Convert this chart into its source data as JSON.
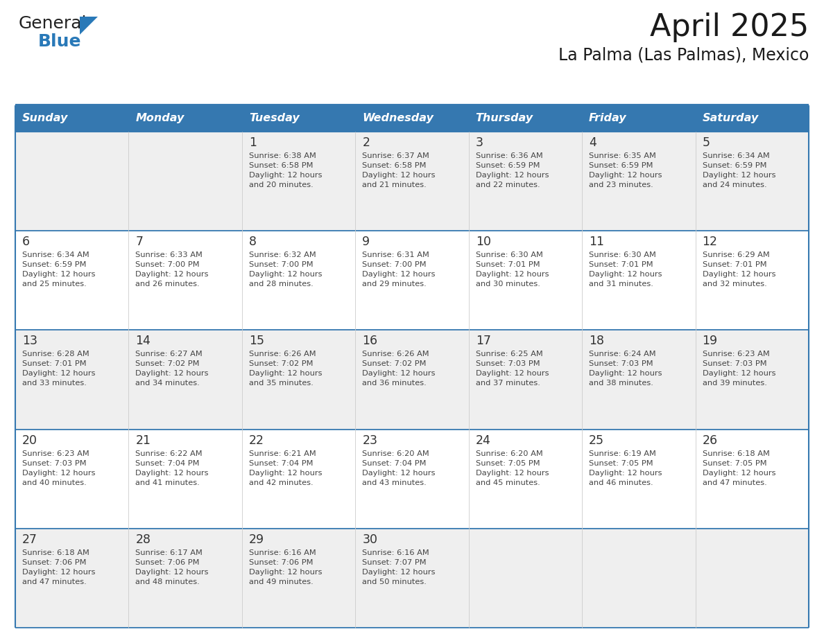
{
  "title": "April 2025",
  "subtitle": "La Palma (Las Palmas), Mexico",
  "header_bg_color": "#3578B0",
  "header_text_color": "#FFFFFF",
  "bg_color": "#FFFFFF",
  "row1_bg": "#EFEFEF",
  "separator_color": "#3578B0",
  "cell_text_color": "#444444",
  "day_num_color": "#333333",
  "day_names": [
    "Sunday",
    "Monday",
    "Tuesday",
    "Wednesday",
    "Thursday",
    "Friday",
    "Saturday"
  ],
  "logo_general_color": "#222222",
  "logo_blue_color": "#2979B8",
  "logo_triangle_color": "#2979B8",
  "title_color": "#1a1a1a",
  "calendar_data": [
    [
      {
        "day": null,
        "sunrise": null,
        "sunset": null,
        "daylight_min": null
      },
      {
        "day": null,
        "sunrise": null,
        "sunset": null,
        "daylight_min": null
      },
      {
        "day": 1,
        "sunrise": "6:38 AM",
        "sunset": "6:58 PM",
        "daylight_min": 20
      },
      {
        "day": 2,
        "sunrise": "6:37 AM",
        "sunset": "6:58 PM",
        "daylight_min": 21
      },
      {
        "day": 3,
        "sunrise": "6:36 AM",
        "sunset": "6:59 PM",
        "daylight_min": 22
      },
      {
        "day": 4,
        "sunrise": "6:35 AM",
        "sunset": "6:59 PM",
        "daylight_min": 23
      },
      {
        "day": 5,
        "sunrise": "6:34 AM",
        "sunset": "6:59 PM",
        "daylight_min": 24
      }
    ],
    [
      {
        "day": 6,
        "sunrise": "6:34 AM",
        "sunset": "6:59 PM",
        "daylight_min": 25
      },
      {
        "day": 7,
        "sunrise": "6:33 AM",
        "sunset": "7:00 PM",
        "daylight_min": 26
      },
      {
        "day": 8,
        "sunrise": "6:32 AM",
        "sunset": "7:00 PM",
        "daylight_min": 28
      },
      {
        "day": 9,
        "sunrise": "6:31 AM",
        "sunset": "7:00 PM",
        "daylight_min": 29
      },
      {
        "day": 10,
        "sunrise": "6:30 AM",
        "sunset": "7:01 PM",
        "daylight_min": 30
      },
      {
        "day": 11,
        "sunrise": "6:30 AM",
        "sunset": "7:01 PM",
        "daylight_min": 31
      },
      {
        "day": 12,
        "sunrise": "6:29 AM",
        "sunset": "7:01 PM",
        "daylight_min": 32
      }
    ],
    [
      {
        "day": 13,
        "sunrise": "6:28 AM",
        "sunset": "7:01 PM",
        "daylight_min": 33
      },
      {
        "day": 14,
        "sunrise": "6:27 AM",
        "sunset": "7:02 PM",
        "daylight_min": 34
      },
      {
        "day": 15,
        "sunrise": "6:26 AM",
        "sunset": "7:02 PM",
        "daylight_min": 35
      },
      {
        "day": 16,
        "sunrise": "6:26 AM",
        "sunset": "7:02 PM",
        "daylight_min": 36
      },
      {
        "day": 17,
        "sunrise": "6:25 AM",
        "sunset": "7:03 PM",
        "daylight_min": 37
      },
      {
        "day": 18,
        "sunrise": "6:24 AM",
        "sunset": "7:03 PM",
        "daylight_min": 38
      },
      {
        "day": 19,
        "sunrise": "6:23 AM",
        "sunset": "7:03 PM",
        "daylight_min": 39
      }
    ],
    [
      {
        "day": 20,
        "sunrise": "6:23 AM",
        "sunset": "7:03 PM",
        "daylight_min": 40
      },
      {
        "day": 21,
        "sunrise": "6:22 AM",
        "sunset": "7:04 PM",
        "daylight_min": 41
      },
      {
        "day": 22,
        "sunrise": "6:21 AM",
        "sunset": "7:04 PM",
        "daylight_min": 42
      },
      {
        "day": 23,
        "sunrise": "6:20 AM",
        "sunset": "7:04 PM",
        "daylight_min": 43
      },
      {
        "day": 24,
        "sunrise": "6:20 AM",
        "sunset": "7:05 PM",
        "daylight_min": 45
      },
      {
        "day": 25,
        "sunrise": "6:19 AM",
        "sunset": "7:05 PM",
        "daylight_min": 46
      },
      {
        "day": 26,
        "sunrise": "6:18 AM",
        "sunset": "7:05 PM",
        "daylight_min": 47
      }
    ],
    [
      {
        "day": 27,
        "sunrise": "6:18 AM",
        "sunset": "7:06 PM",
        "daylight_min": 47
      },
      {
        "day": 28,
        "sunrise": "6:17 AM",
        "sunset": "7:06 PM",
        "daylight_min": 48
      },
      {
        "day": 29,
        "sunrise": "6:16 AM",
        "sunset": "7:06 PM",
        "daylight_min": 49
      },
      {
        "day": 30,
        "sunrise": "6:16 AM",
        "sunset": "7:07 PM",
        "daylight_min": 50
      },
      {
        "day": null,
        "sunrise": null,
        "sunset": null,
        "daylight_min": null
      },
      {
        "day": null,
        "sunrise": null,
        "sunset": null,
        "daylight_min": null
      },
      {
        "day": null,
        "sunrise": null,
        "sunset": null,
        "daylight_min": null
      }
    ]
  ]
}
